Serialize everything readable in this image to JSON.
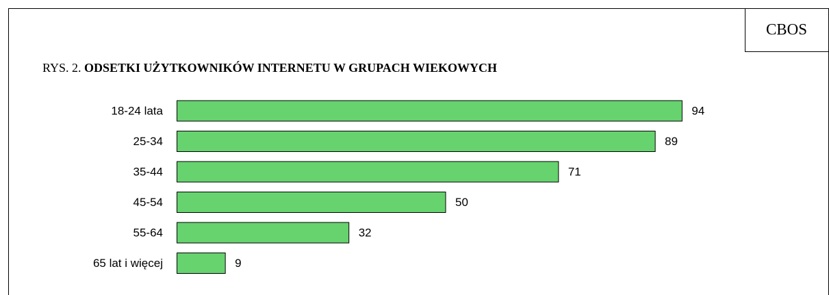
{
  "chart_data": {
    "type": "bar",
    "orientation": "horizontal",
    "badge": "CBOS",
    "title_prefix": "RYS. 2.",
    "title": "ODSETKI UŻYTKOWNIKÓW INTERNETU W GRUPACH WIEKOWYCH",
    "categories": [
      "18-24 lata",
      "25-34",
      "35-44",
      "45-54",
      "55-64",
      "65 lat i więcej"
    ],
    "values": [
      94,
      89,
      71,
      50,
      32,
      9
    ],
    "color": "#66d36e"
  }
}
